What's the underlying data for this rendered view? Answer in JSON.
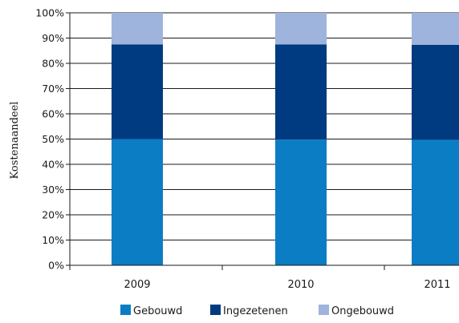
{
  "chart_data": {
    "type": "bar",
    "stacked": true,
    "categories": [
      "2009",
      "2010",
      "2011"
    ],
    "series": [
      {
        "name": "Gebouwd",
        "values": [
          50.0,
          49.8,
          49.7
        ],
        "color": "#0b7dc4"
      },
      {
        "name": "Ingezetenen",
        "values": [
          37.5,
          37.7,
          37.6
        ],
        "color": "#003a80"
      },
      {
        "name": "Ongebouwd",
        "values": [
          12.5,
          12.5,
          12.7
        ],
        "color": "#9fb4dc"
      }
    ],
    "xlabel": "",
    "ylabel": "Kostenaandeel",
    "ylim": [
      0,
      100
    ],
    "yticks": [
      "0%",
      "10%",
      "20%",
      "30%",
      "40%",
      "50%",
      "60%",
      "70%",
      "80%",
      "90%",
      "100%"
    ],
    "grid": true,
    "legend": "bottom"
  }
}
